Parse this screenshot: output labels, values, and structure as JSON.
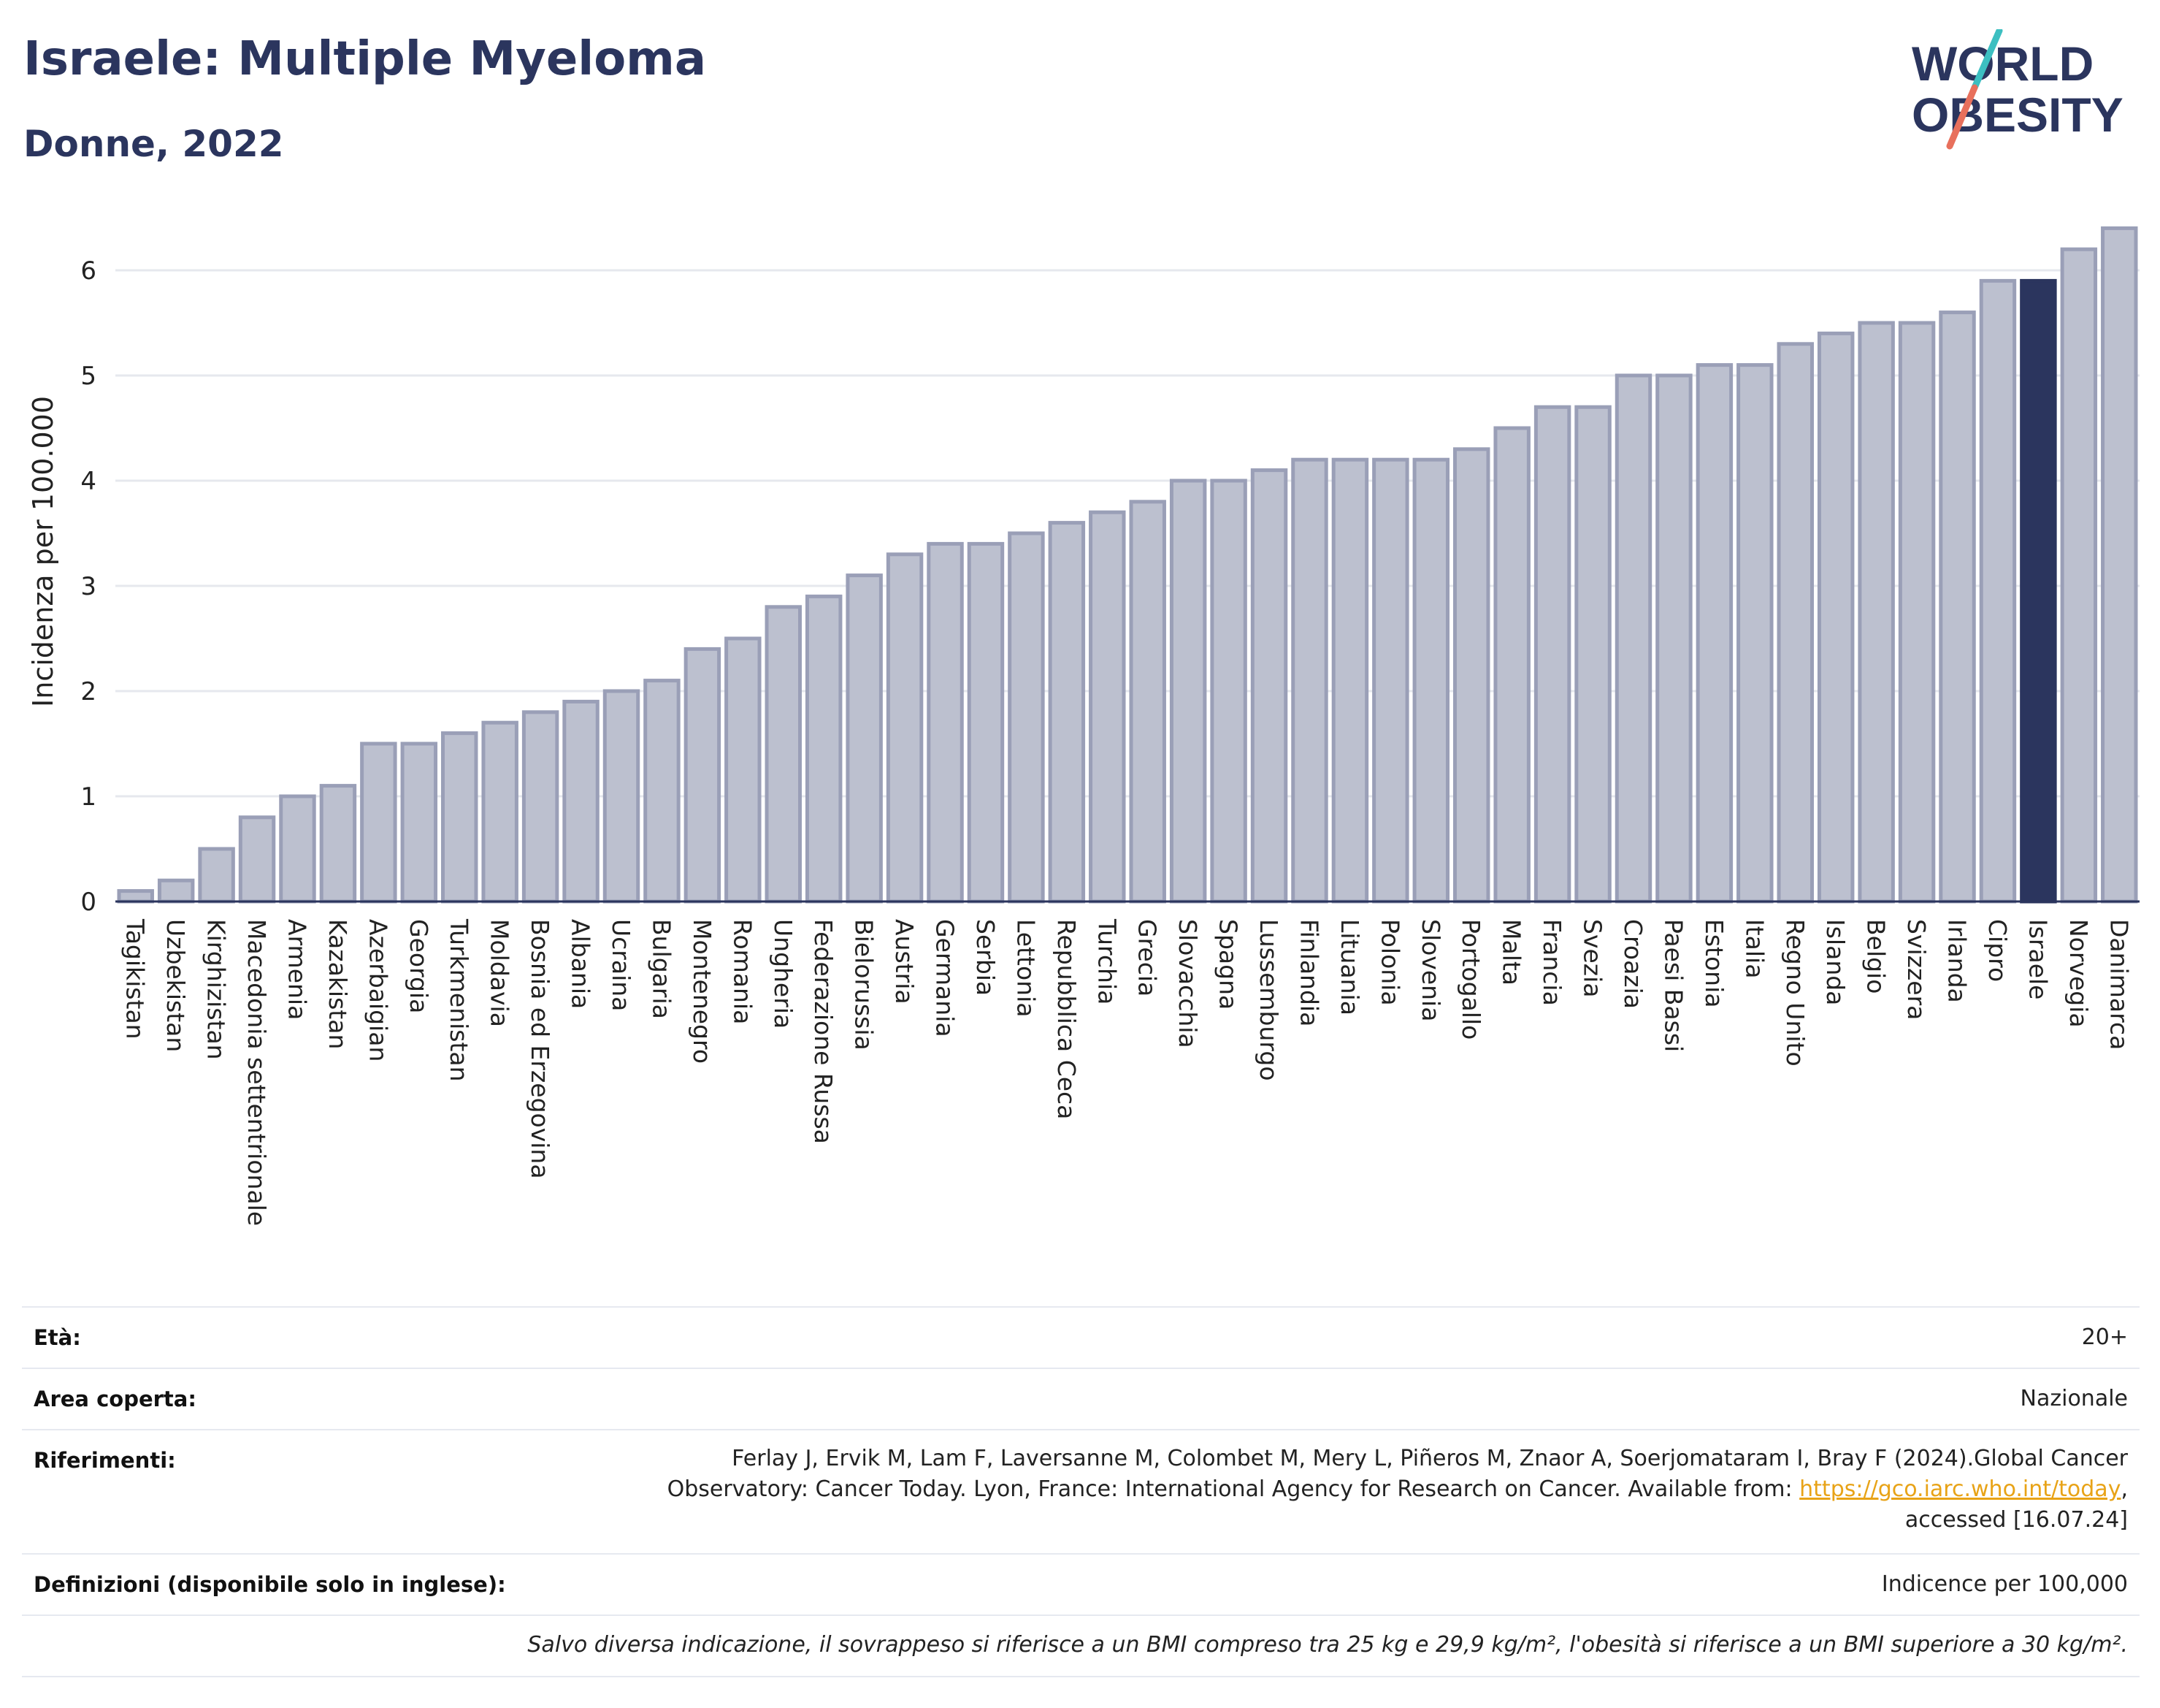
{
  "header": {
    "title": "Israele: Multiple Myeloma",
    "subtitle": "Donne, 2022"
  },
  "logo": {
    "line1": "WORLD",
    "line2": "OBESITY",
    "colors": {
      "text": "#2b355e",
      "slash_teal": "#3cbfc1",
      "slash_coral": "#e8705c"
    }
  },
  "colors": {
    "bar": "#bcc0cf",
    "bar_border": "#9a9fb7",
    "highlight": "#2b355e",
    "grid": "#e6e8ee",
    "axis": "#2b355e"
  },
  "chart_data": {
    "type": "bar",
    "ylabel": "Incidenza per 100.000",
    "ylim": [
      0,
      6.5
    ],
    "yticks": [
      0,
      1,
      2,
      3,
      4,
      5,
      6
    ],
    "grid": true,
    "highlight": "Israele",
    "categories": [
      "Tagikistan",
      "Uzbekistan",
      "Kirghizistan",
      "Macedonia settentrionale",
      "Armenia",
      "Kazakistan",
      "Azerbaigian",
      "Georgia",
      "Turkmenistan",
      "Moldavia",
      "Bosnia ed Erzegovina",
      "Albania",
      "Ucraina",
      "Bulgaria",
      "Montenegro",
      "Romania",
      "Ungheria",
      "Federazione Russa",
      "Bielorussia",
      "Austria",
      "Germania",
      "Serbia",
      "Lettonia",
      "Repubblica Ceca",
      "Turchia",
      "Grecia",
      "Slovacchia",
      "Spagna",
      "Lussemburgo",
      "Finlandia",
      "Lituania",
      "Polonia",
      "Slovenia",
      "Portogallo",
      "Malta",
      "Francia",
      "Svezia",
      "Croazia",
      "Paesi Bassi",
      "Estonia",
      "Italia",
      "Regno Unito",
      "Islanda",
      "Belgio",
      "Svizzera",
      "Irlanda",
      "Cipro",
      "Israele",
      "Norvegia",
      "Danimarca"
    ],
    "values": [
      0.1,
      0.2,
      0.5,
      0.8,
      1.0,
      1.1,
      1.5,
      1.5,
      1.6,
      1.7,
      1.8,
      1.9,
      2.0,
      2.1,
      2.4,
      2.5,
      2.8,
      2.9,
      3.1,
      3.3,
      3.4,
      3.4,
      3.5,
      3.6,
      3.7,
      3.8,
      4.0,
      4.0,
      4.1,
      4.2,
      4.2,
      4.2,
      4.2,
      4.3,
      4.5,
      4.7,
      4.7,
      5.0,
      5.0,
      5.1,
      5.1,
      5.3,
      5.4,
      5.5,
      5.5,
      5.6,
      5.9,
      5.9,
      6.2,
      6.4
    ]
  },
  "meta": {
    "age_label": "Età:",
    "age_value": "20+",
    "area_label": "Area coperta:",
    "area_value": "Nazionale",
    "ref_label": "Riferimenti:",
    "ref_line1": "Ferlay J, Ervik M, Lam F, Laversanne M, Colombet M, Mery L, Piñeros M, Znaor A, Soerjomataram I, Bray F (2024).Global Cancer",
    "ref_line2_prefix": "Observatory: Cancer Today. Lyon, France: International Agency for Research on Cancer. Available from: ",
    "ref_link": "https://gco.iarc.who.int/today",
    "ref_line2_suffix": ",",
    "ref_line3": "accessed [16.07.24]",
    "def_label": "Definizioni (disponibile solo in inglese):",
    "def_value": "Indicence per 100,000",
    "footnote": "Salvo diversa indicazione, il sovrappeso si riferisce a un BMI compreso tra 25 kg e 29,9 kg/m², l'obesità si riferisce a un BMI superiore a 30 kg/m²."
  }
}
